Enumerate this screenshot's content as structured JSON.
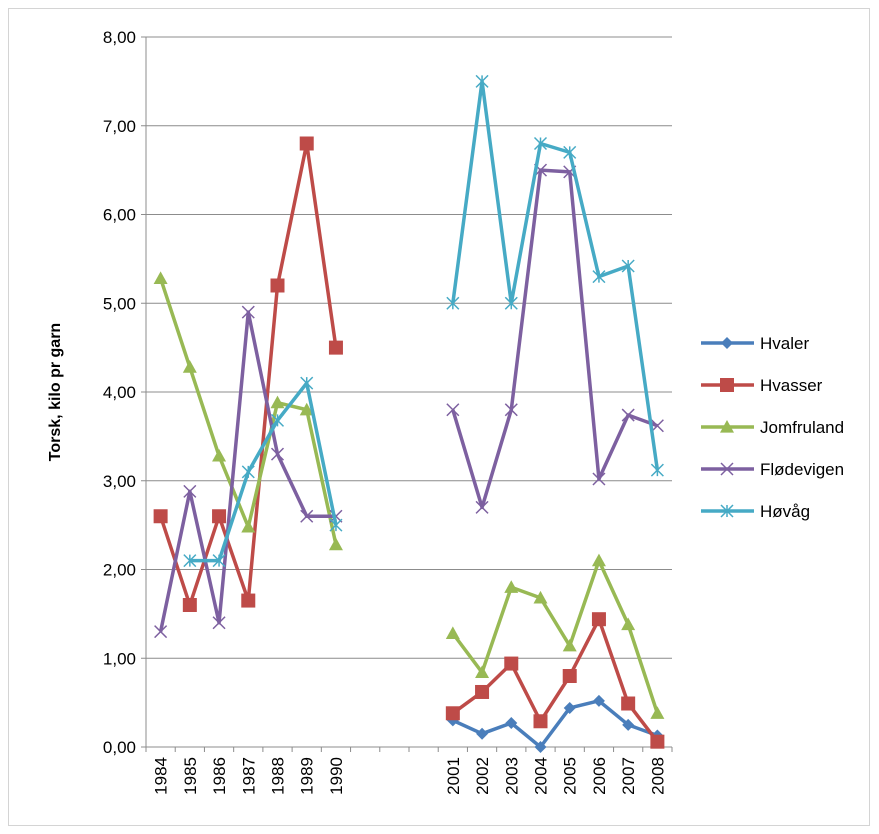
{
  "chart_data": {
    "type": "line",
    "title": "",
    "xlabel": "",
    "ylabel": "Torsk, kilo pr garn",
    "ylim": [
      0,
      8
    ],
    "yticks": [
      "0,00",
      "1,00",
      "2,00",
      "3,00",
      "4,00",
      "5,00",
      "6,00",
      "7,00",
      "8,00"
    ],
    "categories": [
      "1984",
      "1985",
      "1986",
      "1987",
      "1988",
      "1989",
      "1990",
      "",
      "",
      "",
      "2001",
      "2002",
      "2003",
      "2004",
      "2005",
      "2006",
      "2007",
      "2008"
    ],
    "grid": "horizontal",
    "legend_position": "right",
    "series": [
      {
        "name": "Hvaler",
        "color": "#4a7ebb",
        "marker": "diamond",
        "values": [
          null,
          null,
          null,
          null,
          null,
          null,
          null,
          null,
          null,
          null,
          0.3,
          0.15,
          0.27,
          0.0,
          0.44,
          0.52,
          0.25,
          0.13
        ]
      },
      {
        "name": "Hvasser",
        "color": "#be4b48",
        "marker": "square",
        "values": [
          2.6,
          1.6,
          2.6,
          1.65,
          5.2,
          6.8,
          4.5,
          null,
          null,
          null,
          0.38,
          0.62,
          0.94,
          0.29,
          0.8,
          1.44,
          0.49,
          0.06
        ]
      },
      {
        "name": "Jomfruland",
        "color": "#98b954",
        "marker": "triangle",
        "values": [
          5.28,
          4.28,
          3.28,
          2.48,
          3.88,
          3.8,
          2.28,
          null,
          null,
          null,
          1.28,
          0.84,
          1.8,
          1.68,
          1.14,
          2.1,
          1.38,
          0.38
        ]
      },
      {
        "name": "Flødevigen",
        "color": "#7d60a0",
        "marker": "x",
        "values": [
          1.3,
          2.88,
          1.4,
          4.9,
          3.3,
          2.6,
          2.6,
          null,
          null,
          null,
          3.8,
          2.7,
          3.8,
          6.5,
          6.48,
          3.02,
          3.74,
          3.62
        ]
      },
      {
        "name": "Høvåg",
        "color": "#46aac5",
        "marker": "asterisk",
        "values": [
          null,
          2.1,
          2.1,
          3.1,
          3.68,
          4.1,
          2.5,
          null,
          null,
          null,
          5.0,
          7.5,
          5.0,
          6.8,
          6.7,
          5.3,
          5.42,
          3.12
        ]
      }
    ]
  }
}
